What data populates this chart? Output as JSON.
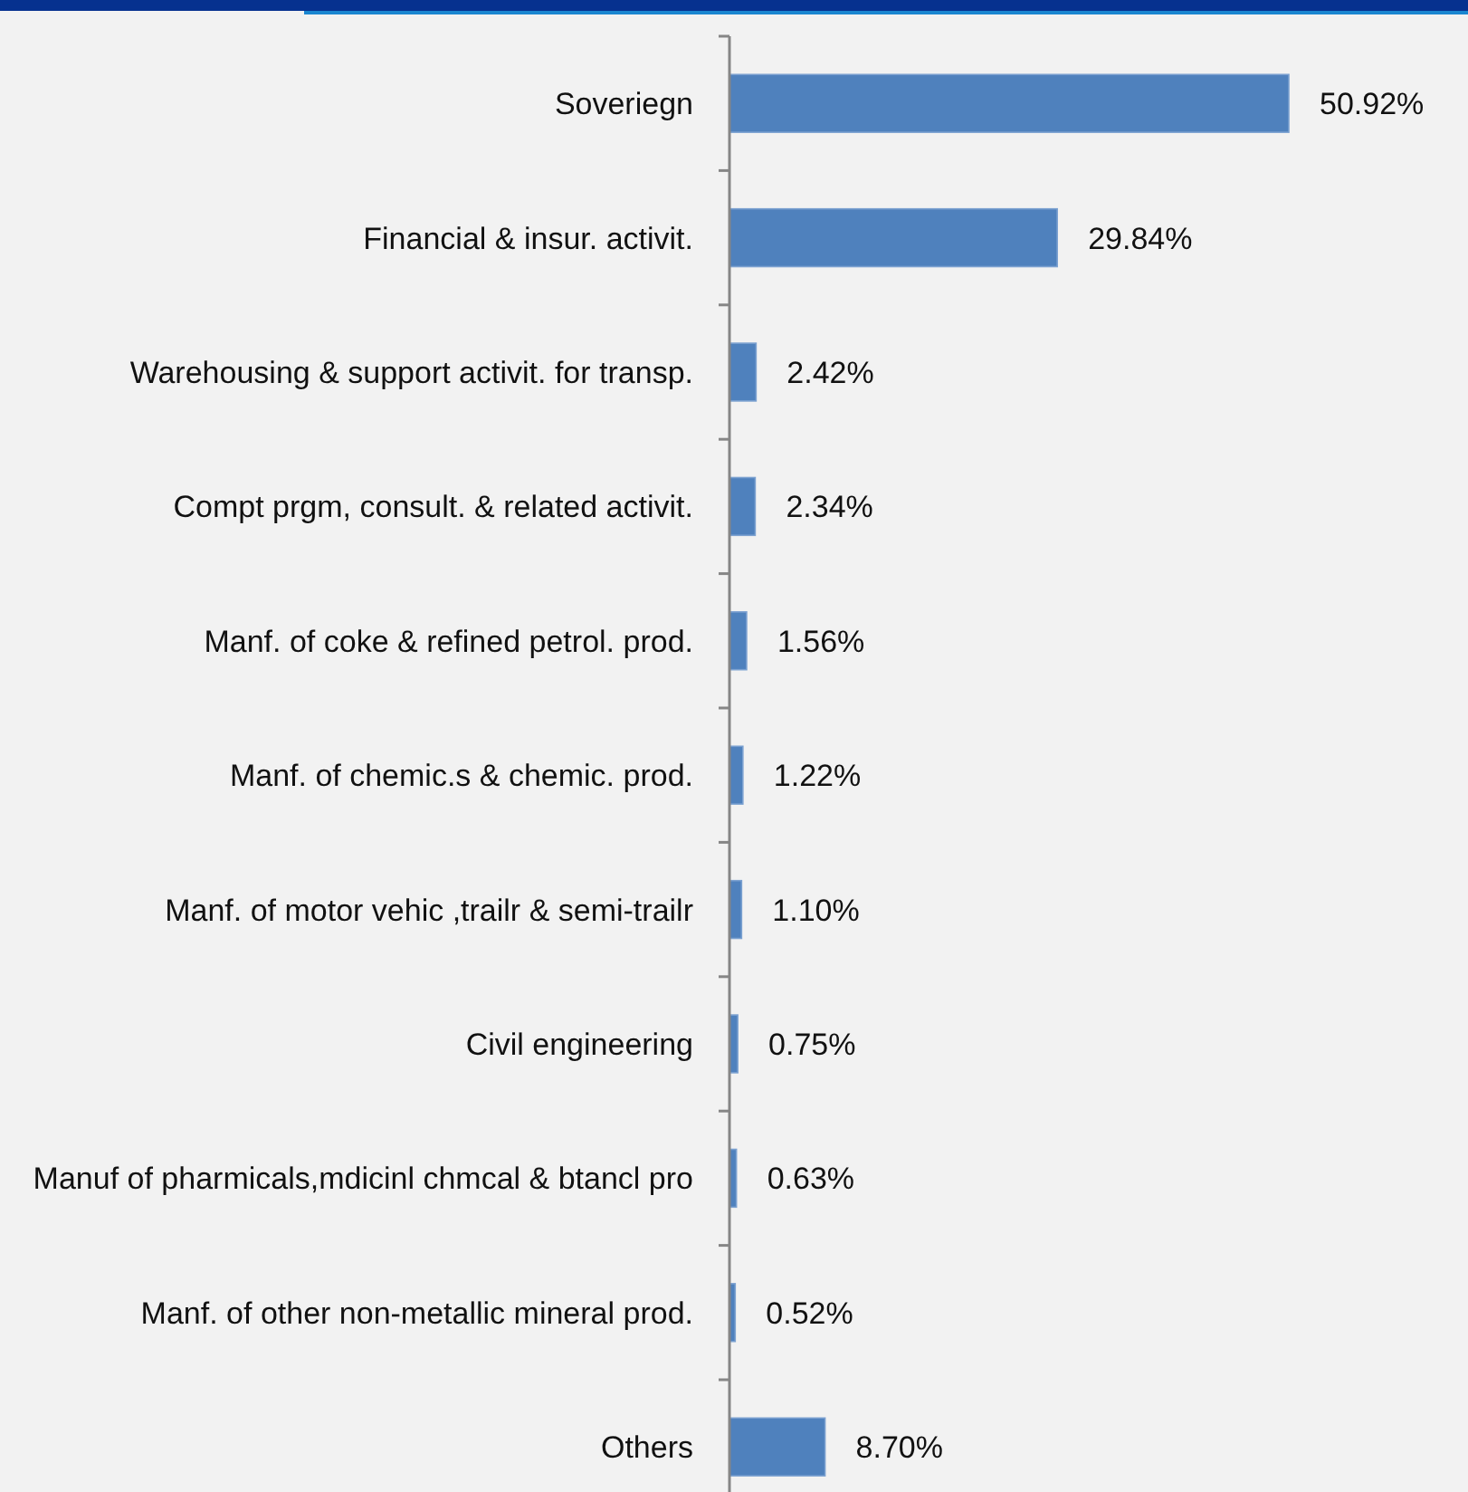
{
  "chart_data": {
    "type": "bar",
    "orientation": "horizontal",
    "relative": false,
    "categories": [
      "Soveriegn",
      "Financial & insur. activit.",
      "Warehousing & support activit. for transp.",
      "Compt prgm, consult. & related activit.",
      "Manf. of coke & refined petrol. prod.",
      "Manf. of chemic.s & chemic. prod.",
      "Manf. of motor vehic ,trailr & semi-trailr",
      "Civil engineering",
      "Manuf of pharmicals,mdicinl chmcal & btancl pro",
      "Manf. of other non-metallic mineral prod.",
      "Others"
    ],
    "values": [
      50.92,
      29.84,
      2.42,
      2.34,
      1.56,
      1.22,
      1.1,
      0.75,
      0.63,
      0.52,
      8.7
    ],
    "value_labels": [
      "50.92%",
      "29.84%",
      "2.42%",
      "2.34%",
      "1.56%",
      "1.22%",
      "1.10%",
      "0.75%",
      "0.63%",
      "0.52%",
      "8.70%"
    ],
    "color": "#4f81bd"
  }
}
